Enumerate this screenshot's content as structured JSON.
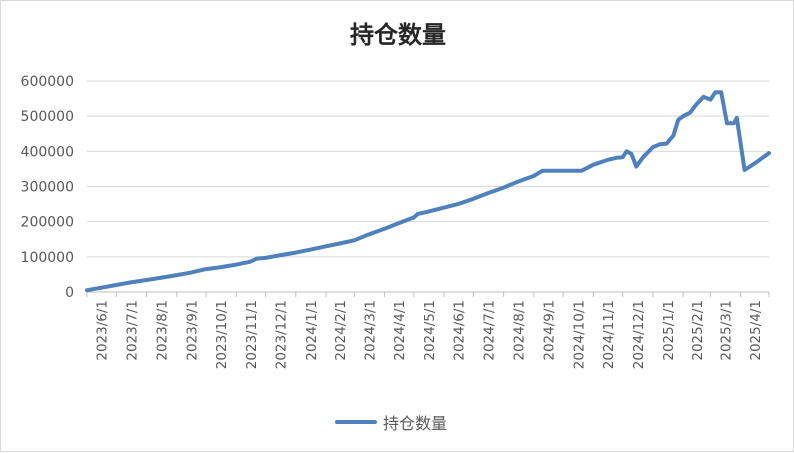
{
  "chart_data": {
    "type": "line",
    "title": "持仓数量",
    "series": [
      {
        "name": "持仓数量",
        "color": "#4f81bd",
        "points": [
          [
            "2023-06-01",
            5000
          ],
          [
            "2023-06-15",
            12000
          ],
          [
            "2023-07-01",
            20000
          ],
          [
            "2023-07-15",
            27000
          ],
          [
            "2023-08-01",
            34000
          ],
          [
            "2023-08-15",
            40000
          ],
          [
            "2023-09-01",
            48000
          ],
          [
            "2023-09-15",
            55000
          ],
          [
            "2023-10-01",
            65000
          ],
          [
            "2023-10-15",
            70000
          ],
          [
            "2023-11-01",
            78000
          ],
          [
            "2023-11-15",
            86000
          ],
          [
            "2023-11-22",
            95000
          ],
          [
            "2023-12-01",
            97000
          ],
          [
            "2023-12-15",
            104000
          ],
          [
            "2024-01-01",
            112000
          ],
          [
            "2024-01-15",
            120000
          ],
          [
            "2024-02-01",
            130000
          ],
          [
            "2024-02-15",
            138000
          ],
          [
            "2024-03-01",
            147000
          ],
          [
            "2024-03-15",
            163000
          ],
          [
            "2024-04-01",
            180000
          ],
          [
            "2024-04-15",
            195000
          ],
          [
            "2024-05-01",
            212000
          ],
          [
            "2024-05-05",
            222000
          ],
          [
            "2024-05-15",
            228000
          ],
          [
            "2024-06-01",
            240000
          ],
          [
            "2024-06-15",
            250000
          ],
          [
            "2024-07-01",
            265000
          ],
          [
            "2024-07-15",
            280000
          ],
          [
            "2024-08-01",
            297000
          ],
          [
            "2024-08-15",
            313000
          ],
          [
            "2024-09-01",
            330000
          ],
          [
            "2024-09-10",
            345000
          ],
          [
            "2024-09-20",
            345000
          ],
          [
            "2024-10-01",
            345000
          ],
          [
            "2024-10-10",
            345000
          ],
          [
            "2024-10-20",
            345000
          ],
          [
            "2024-11-01",
            362000
          ],
          [
            "2024-11-15",
            375000
          ],
          [
            "2024-11-25",
            382000
          ],
          [
            "2024-12-01",
            383000
          ],
          [
            "2024-12-05",
            400000
          ],
          [
            "2024-12-10",
            393000
          ],
          [
            "2024-12-15",
            357000
          ],
          [
            "2024-12-22",
            383000
          ],
          [
            "2025-01-01",
            412000
          ],
          [
            "2025-01-08",
            420000
          ],
          [
            "2025-01-15",
            422000
          ],
          [
            "2025-01-22",
            445000
          ],
          [
            "2025-01-27",
            490000
          ],
          [
            "2025-02-01",
            500000
          ],
          [
            "2025-02-08",
            510000
          ],
          [
            "2025-02-15",
            535000
          ],
          [
            "2025-02-22",
            555000
          ],
          [
            "2025-03-01",
            547000
          ],
          [
            "2025-03-06",
            568000
          ],
          [
            "2025-03-12",
            568000
          ],
          [
            "2025-03-18",
            480000
          ],
          [
            "2025-03-25",
            480000
          ],
          [
            "2025-03-28",
            495000
          ],
          [
            "2025-04-05",
            347000
          ],
          [
            "2025-04-15",
            365000
          ],
          [
            "2025-04-30",
            395000
          ]
        ]
      }
    ],
    "y_ticks": [
      "0",
      "100000",
      "200000",
      "300000",
      "400000",
      "500000",
      "600000"
    ],
    "ylim": [
      0,
      600000
    ],
    "x_ticks": [
      "2023/6/1",
      "2023/7/1",
      "2023/8/1",
      "2023/9/1",
      "2023/10/1",
      "2023/11/1",
      "2023/12/1",
      "2024/1/1",
      "2024/2/1",
      "2024/3/1",
      "2024/4/1",
      "2024/5/1",
      "2024/6/1",
      "2024/7/1",
      "2024/8/1",
      "2024/9/1",
      "2024/10/1",
      "2024/11/1",
      "2024/12/1",
      "2025/1/1",
      "2025/2/1",
      "2025/3/1",
      "2025/4/1"
    ],
    "xlim": [
      "2023-06-01",
      "2025-04-30"
    ],
    "grid": true,
    "legend": "bottom"
  }
}
